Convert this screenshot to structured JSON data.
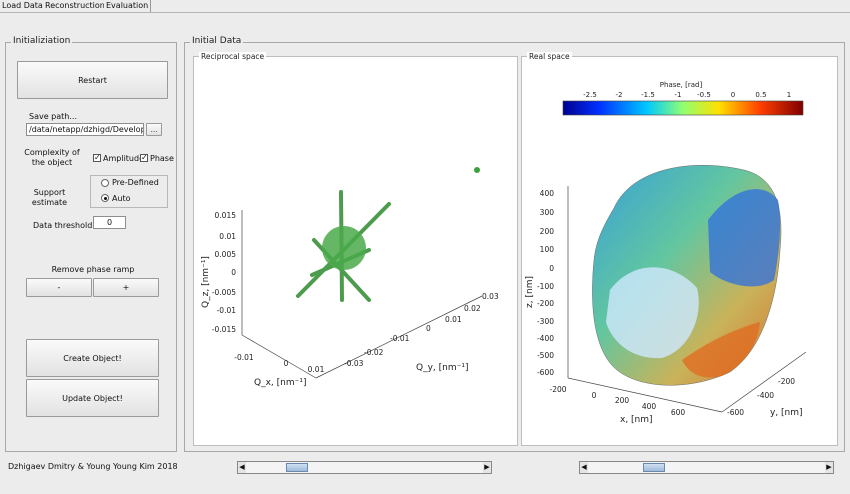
{
  "tabs": [
    "Load Data",
    "Reconstruction",
    "Evaluation"
  ],
  "init_panel": {
    "title": "Initializiation",
    "restart_label": "Restart",
    "save_path_label": "Save path...",
    "save_path_value": "/data/netapp/dzhigd/Developmen",
    "browse_label": "...",
    "complexity_label_1": "Complexity of",
    "complexity_label_2": "the object",
    "amplitude_label": "Amplitude",
    "phase_label": "Phase",
    "support_label_1": "Support",
    "support_label_2": "estimate",
    "predefined_label": "Pre-Defined",
    "auto_label": "Auto",
    "threshold_label": "Data threshold",
    "threshold_value": "0",
    "ramp_label": "Remove phase ramp",
    "minus_label": "-",
    "plus_label": "+",
    "create_label": "Create Object!",
    "update_label": "Update Object!"
  },
  "initial_panel": {
    "title": "Initial Data",
    "reciprocal_title": "Reciprocal space",
    "real_title": "Real space"
  },
  "reciprocal_plot": {
    "z_ticks": [
      "0.015",
      "0.01",
      "0.005",
      "0",
      "-0.005",
      "-0.01",
      "-0.015"
    ],
    "x_ticks": [
      "-0.01",
      "0",
      "0.01"
    ],
    "y_ticks": [
      "-0.03",
      "-0.02",
      "-0.01",
      "0",
      "0.01",
      "0.02",
      "0.03"
    ],
    "zlabel": "Q_z, [nm⁻¹]",
    "xlabel": "Q_x, [nm⁻¹]",
    "ylabel": "Q_y, [nm⁻¹]",
    "color": "#3aa23a"
  },
  "real_plot": {
    "colorbar_title": "Phase, [rad]",
    "colorbar_ticks": [
      "-2.5",
      "-2",
      "-1.5",
      "-1",
      "-0.5",
      "0",
      "0.5",
      "1"
    ],
    "z_ticks": [
      "400",
      "300",
      "200",
      "100",
      "0",
      "-100",
      "-200",
      "-300",
      "-400",
      "-500",
      "-600"
    ],
    "x_ticks": [
      "-200",
      "0",
      "200",
      "400",
      "600"
    ],
    "y_ticks": [
      "-600",
      "-400",
      "-200"
    ],
    "zlabel": "z, [nm]",
    "xlabel": "x, [nm]",
    "ylabel": "y, [nm]"
  },
  "footer": {
    "credit": "Dzhigaev Dmitry & Young Young Kim 2018",
    "left_arrow": "◀",
    "right_arrow": "▶"
  }
}
